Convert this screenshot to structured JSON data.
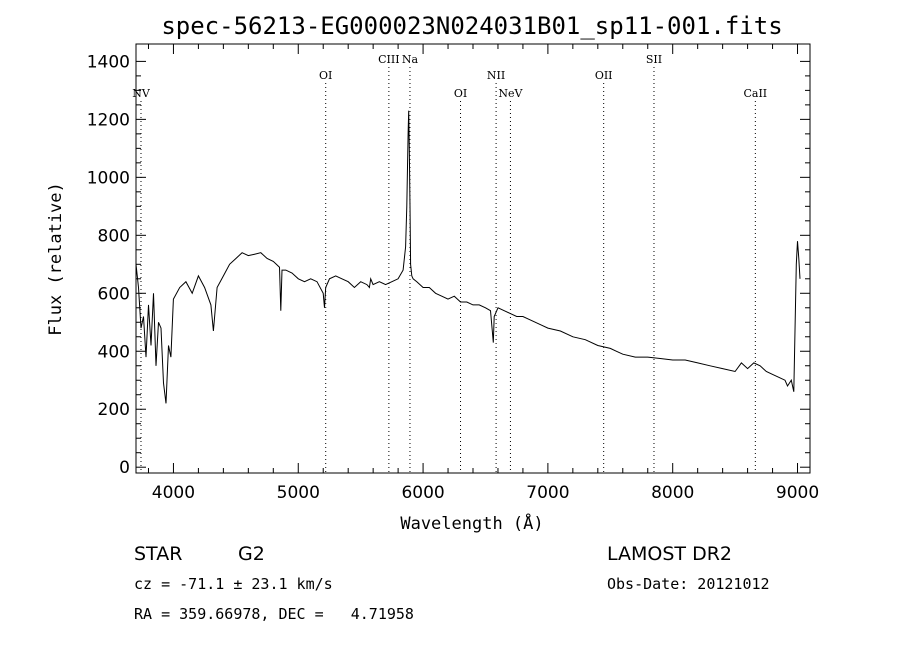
{
  "chart_data": {
    "type": "line",
    "title": "spec-56213-EG000023N024031B01_sp11-001.fits",
    "xlabel": "Wavelength (Å)",
    "ylabel": "Flux (relative)",
    "xlim": [
      3700,
      9100
    ],
    "ylim": [
      -20,
      1460
    ],
    "xticks": [
      4000,
      5000,
      6000,
      7000,
      8000,
      9000
    ],
    "yticks": [
      0,
      200,
      400,
      600,
      800,
      1000,
      1200,
      1400
    ],
    "grid": false,
    "series": [
      {
        "x": [
          3700,
          3720,
          3740,
          3760,
          3780,
          3800,
          3820,
          3840,
          3860,
          3880,
          3900,
          3920,
          3940,
          3960,
          3980,
          4000,
          4050,
          4100,
          4150,
          4200,
          4250,
          4300,
          4320,
          4350,
          4400,
          4450,
          4500,
          4550,
          4600,
          4650,
          4700,
          4750,
          4800,
          4850,
          4860,
          4870,
          4900,
          4950,
          5000,
          5050,
          5100,
          5150,
          5200,
          5210,
          5220,
          5250,
          5300,
          5350,
          5400,
          5450,
          5500,
          5550,
          5570,
          5580,
          5600,
          5650,
          5700,
          5750,
          5800,
          5840,
          5860,
          5870,
          5880,
          5885,
          5890,
          5895,
          5900,
          5910,
          5920,
          5950,
          6000,
          6050,
          6100,
          6150,
          6200,
          6250,
          6300,
          6350,
          6400,
          6450,
          6500,
          6540,
          6555,
          6563,
          6570,
          6600,
          6650,
          6700,
          6750,
          6800,
          6850,
          6900,
          6950,
          7000,
          7100,
          7200,
          7300,
          7400,
          7500,
          7550,
          7600,
          7700,
          7800,
          7900,
          8000,
          8100,
          8200,
          8300,
          8400,
          8500,
          8550,
          8600,
          8650,
          8700,
          8750,
          8800,
          8850,
          8900,
          8920,
          8950,
          8970,
          8990,
          9000,
          9010,
          9020
        ],
        "y": [
          700,
          620,
          480,
          520,
          380,
          560,
          420,
          600,
          350,
          500,
          480,
          290,
          220,
          420,
          380,
          580,
          620,
          640,
          600,
          660,
          620,
          560,
          470,
          620,
          660,
          700,
          720,
          740,
          730,
          735,
          740,
          720,
          710,
          690,
          540,
          680,
          680,
          670,
          650,
          640,
          650,
          640,
          600,
          550,
          620,
          650,
          660,
          650,
          640,
          620,
          640,
          630,
          620,
          650,
          630,
          640,
          630,
          640,
          650,
          680,
          760,
          900,
          1150,
          1230,
          1100,
          900,
          700,
          660,
          650,
          640,
          620,
          620,
          600,
          590,
          580,
          590,
          570,
          570,
          560,
          560,
          550,
          540,
          470,
          430,
          520,
          550,
          540,
          530,
          520,
          520,
          510,
          500,
          490,
          480,
          470,
          450,
          440,
          420,
          410,
          400,
          390,
          380,
          380,
          375,
          370,
          370,
          360,
          350,
          340,
          330,
          360,
          340,
          360,
          350,
          330,
          320,
          310,
          300,
          280,
          300,
          260,
          700,
          780,
          720,
          650
        ]
      }
    ],
    "line_ids": [
      {
        "label": "NV",
        "x": 3740,
        "row": "low"
      },
      {
        "label": "OI",
        "x": 5220,
        "row": "mid"
      },
      {
        "label": "CIII",
        "x": 5726,
        "row": "top"
      },
      {
        "label": "Na",
        "x": 5895,
        "row": "top"
      },
      {
        "label": "OI",
        "x": 6300,
        "row": "low"
      },
      {
        "label": "NII",
        "x": 6585,
        "row": "mid"
      },
      {
        "label": "NeV",
        "x": 6700,
        "row": "low"
      },
      {
        "label": "OII",
        "x": 7447,
        "row": "mid"
      },
      {
        "label": "SII",
        "x": 7850,
        "row": "top"
      },
      {
        "label": "CaII",
        "x": 8662,
        "row": "low"
      }
    ]
  },
  "info": {
    "object_class": "STAR",
    "subclass": "G2",
    "survey": "LAMOST DR2",
    "redshift_line": "cz = -71.1 ± 23.1 km/s",
    "obs_date": "Obs-Date: 20121012",
    "coords": "RA = 359.66978, DEC =   4.71958"
  }
}
